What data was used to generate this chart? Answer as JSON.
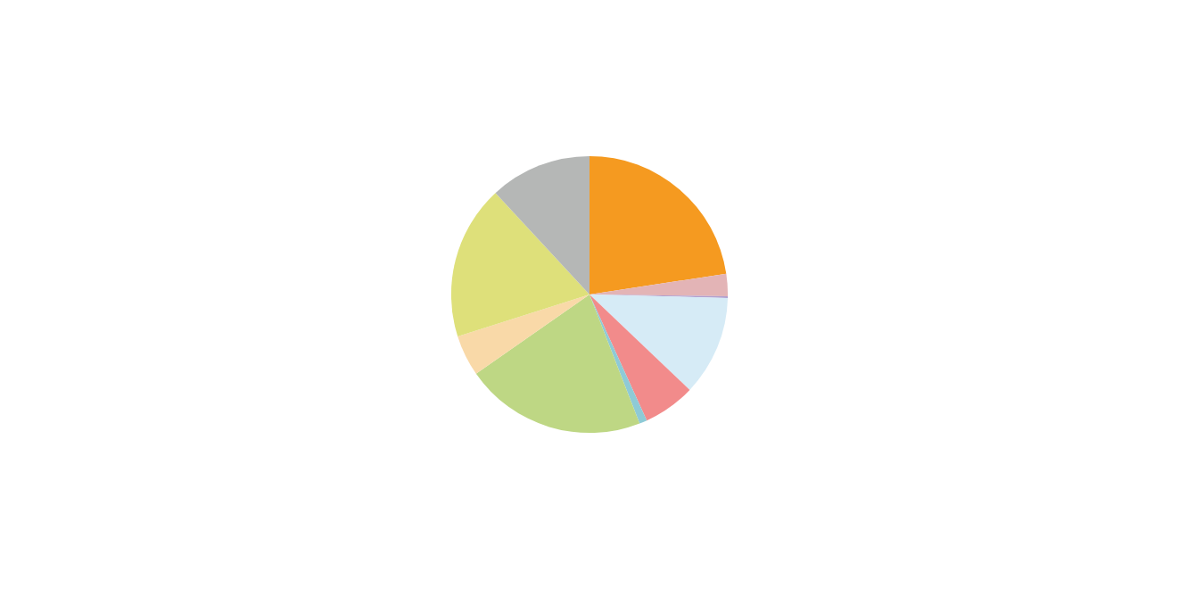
{
  "chart_data": {
    "type": "pie",
    "categories": [
      null,
      null,
      null,
      null,
      null,
      null,
      null,
      null,
      null,
      null
    ],
    "values": [
      22.6,
      2.6,
      0.2,
      11.7,
      6.1,
      0.9,
      21.2,
      4.8,
      18.0,
      11.9
    ],
    "colors": [
      "#f59a20",
      "#e3b4b6",
      "#b0a0d0",
      "#d6ebf6",
      "#f28b8b",
      "#8ecad6",
      "#bed784",
      "#f9d9a8",
      "#dee07a",
      "#b5b7b6"
    ]
  }
}
